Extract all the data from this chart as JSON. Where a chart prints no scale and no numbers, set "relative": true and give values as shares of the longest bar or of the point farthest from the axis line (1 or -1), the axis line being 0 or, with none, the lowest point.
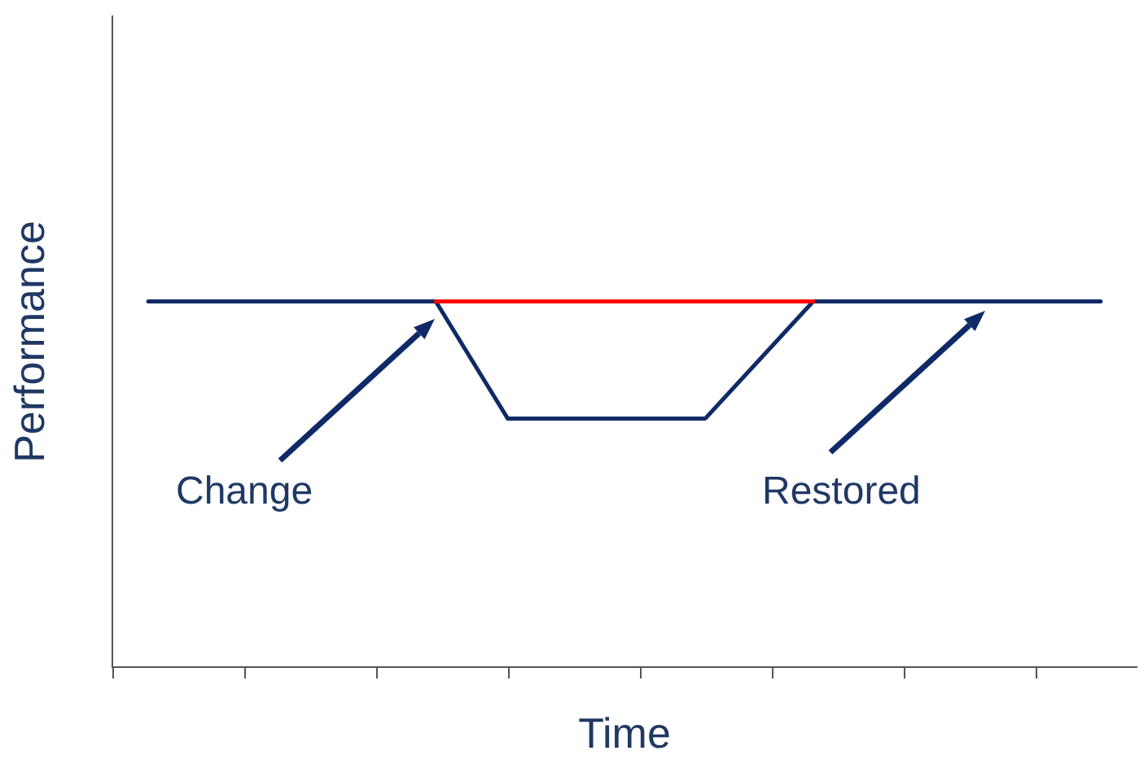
{
  "chart_data": {
    "type": "line",
    "xlabel": "Time",
    "ylabel": "Performance",
    "relative": true,
    "marker": "none",
    "line_style": "solid",
    "categories": [
      null,
      null,
      null,
      null,
      null,
      null,
      null,
      null,
      null,
      null,
      null,
      null,
      null,
      null,
      null,
      null,
      null,
      null,
      null,
      null,
      null,
      null,
      null,
      null,
      null,
      null,
      null,
      null,
      null,
      null,
      null,
      null,
      null,
      null,
      null,
      null,
      null,
      null,
      null,
      null,
      null,
      null,
      null,
      null,
      null,
      null,
      null,
      null,
      null,
      null,
      null,
      null,
      null,
      null,
      null,
      null,
      null,
      null
    ],
    "series": [
      {
        "color": "#0f2a66",
        "values": [
          null,
          null,
          1,
          null,
          null,
          null,
          null,
          null,
          null,
          null,
          null,
          null,
          null,
          null,
          null,
          null,
          null,
          null,
          1,
          null,
          null,
          null,
          0.68,
          null,
          null,
          null,
          null,
          null,
          null,
          null,
          null,
          null,
          null,
          0.68,
          null,
          null,
          null,
          null,
          null,
          1,
          null,
          null,
          null,
          null,
          null,
          null,
          null,
          null,
          null,
          null,
          null,
          null,
          null,
          null,
          null,
          1,
          null,
          null
        ]
      },
      {
        "color": "#ff0000",
        "values": [
          null,
          null,
          null,
          null,
          null,
          null,
          null,
          null,
          null,
          null,
          null,
          null,
          null,
          null,
          null,
          null,
          null,
          null,
          1,
          null,
          null,
          null,
          null,
          null,
          null,
          null,
          null,
          null,
          null,
          null,
          null,
          null,
          null,
          null,
          null,
          null,
          null,
          null,
          null,
          1,
          null,
          null,
          null,
          null,
          null,
          null,
          null,
          null,
          null,
          null,
          null,
          null,
          null,
          null,
          null,
          null,
          null,
          null
        ]
      }
    ],
    "annotations": [
      "Change",
      "Restored"
    ]
  }
}
